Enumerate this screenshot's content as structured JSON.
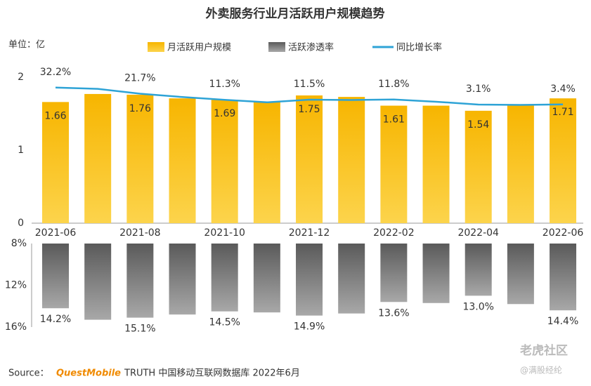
{
  "chart_data": [
    {
      "type": "bar",
      "title": "外卖服务行业月活跃用户规模趋势",
      "unit_label": "单位：亿",
      "categories": [
        "2021-06",
        null,
        "2021-08",
        null,
        "2021-10",
        null,
        "2021-12",
        null,
        "2022-02",
        null,
        "2022-04",
        null,
        "2022-06"
      ],
      "series": [
        {
          "name": "月活跃用户规模",
          "type": "bar",
          "color": "#f8b900",
          "values": [
            1.66,
            1.77,
            1.76,
            1.71,
            1.69,
            1.66,
            1.75,
            1.73,
            1.61,
            1.61,
            1.54,
            1.62,
            1.71
          ],
          "value_labels": [
            "1.66",
            null,
            "1.76",
            null,
            "1.69",
            null,
            "1.75",
            null,
            "1.61",
            null,
            "1.54",
            null,
            "1.71"
          ]
        },
        {
          "name": "同比增长率",
          "type": "line",
          "axis": "y2",
          "color": "#2ea3d6",
          "values": [
            32.2,
            30.0,
            21.7,
            16.0,
            11.3,
            7.0,
            11.5,
            11.0,
            11.8,
            8.0,
            3.1,
            2.5,
            3.4
          ],
          "value_labels": [
            "32.2%",
            null,
            "21.7%",
            null,
            "11.3%",
            null,
            "11.5%",
            null,
            "11.8%",
            null,
            "3.1%",
            null,
            "3.4%"
          ]
        }
      ],
      "ylim": [
        0,
        2
      ],
      "yticks": [
        0,
        1,
        2
      ],
      "y2lim": [
        -200,
        50
      ]
    },
    {
      "type": "bar",
      "series": [
        {
          "name": "活跃渗透率",
          "color": "#7a7a7a",
          "values": [
            14.2,
            15.3,
            15.1,
            14.8,
            14.5,
            14.6,
            14.9,
            14.7,
            13.6,
            13.7,
            13.0,
            13.8,
            14.4
          ],
          "value_labels": [
            "14.2%",
            null,
            "15.1%",
            null,
            "14.5%",
            null,
            "14.9%",
            null,
            "13.6%",
            null,
            "13.0%",
            null,
            "14.4%"
          ]
        }
      ],
      "ylim": [
        8,
        16
      ],
      "y_inverted": true,
      "yticks": [
        {
          "value": 8,
          "label": "8%"
        },
        {
          "value": 12,
          "label": "12%"
        },
        {
          "value": 16,
          "label": "16%"
        }
      ]
    }
  ],
  "source": {
    "prefix": "Source：",
    "brand": "QuestMobile",
    "text": "TRUTH 中国移动互联网数据库 2022年6月"
  },
  "watermark": {
    "name": "老虎社区",
    "handle": "@满股经纶"
  }
}
